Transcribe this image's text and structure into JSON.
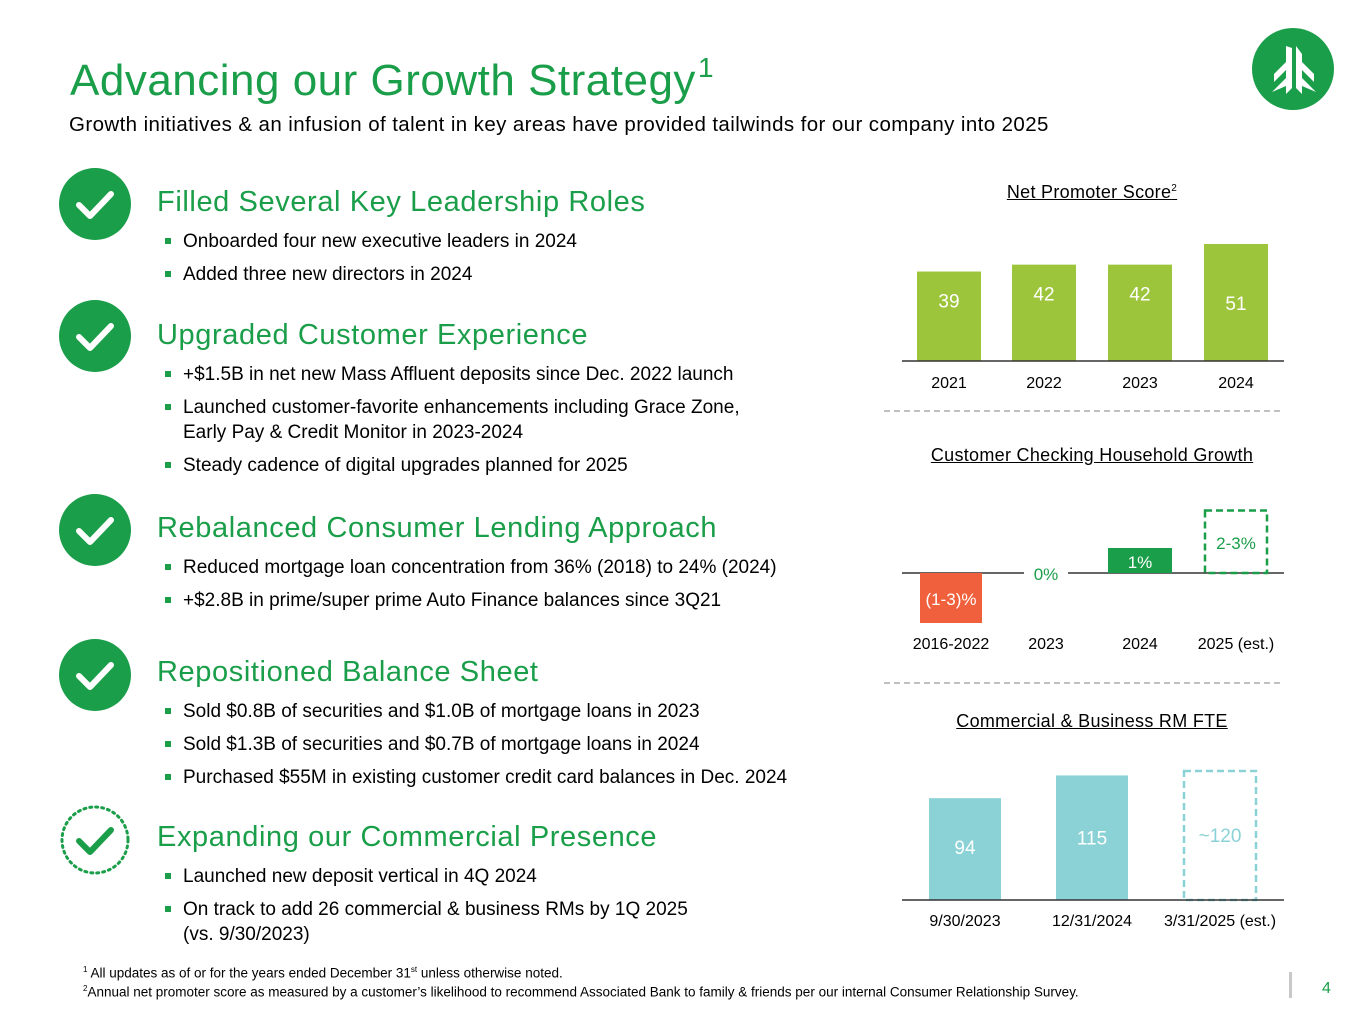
{
  "header": {
    "title": "Advancing our Growth Strategy",
    "title_sup": "1",
    "subtitle": "Growth initiatives & an infusion of talent in key areas have provided tailwinds for our company into 2025"
  },
  "colors": {
    "brand_green": "#1a9e49",
    "lime": "#9dc53b",
    "red": "#f0603c",
    "teal": "#8bd2d6"
  },
  "sections": [
    {
      "title": "Filled Several Key Leadership Roles",
      "status": "complete",
      "bullets": [
        "Onboarded four new executive leaders in 2024",
        "Added three new directors in 2024"
      ]
    },
    {
      "title": "Upgraded Customer Experience",
      "status": "complete",
      "bullets": [
        "+$1.5B in net new Mass Affluent deposits since Dec. 2022 launch",
        "Launched customer-favorite enhancements including Grace Zone,",
        "Early Pay & Credit Monitor in 2023-2024",
        "Steady cadence of digital upgrades planned for 2025"
      ]
    },
    {
      "title": "Rebalanced Consumer Lending Approach",
      "status": "complete",
      "bullets": [
        "Reduced mortgage loan concentration from 36% (2018) to 24% (2024)",
        "+$2.8B in prime/super prime Auto Finance balances since 3Q21"
      ]
    },
    {
      "title": "Repositioned Balance Sheet",
      "status": "complete",
      "bullets": [
        "Sold $0.8B of securities and $1.0B of mortgage loans in 2023",
        "Sold $1.3B of securities and $0.7B of mortgage loans in 2024",
        "Purchased $55M in existing customer credit card balances in Dec. 2024"
      ]
    },
    {
      "title": "Expanding our Commercial Presence",
      "status": "in-progress",
      "bullets": [
        "Launched new deposit vertical in 4Q 2024",
        "On track to add 26 commercial & business RMs by 1Q 2025",
        "(vs. 9/30/2023)"
      ]
    }
  ],
  "chart_data": [
    {
      "type": "bar",
      "title": "Net Promoter Score",
      "title_sup": "2",
      "categories": [
        "2021",
        "2022",
        "2023",
        "2024"
      ],
      "values": [
        39,
        42,
        42,
        51
      ],
      "labels": [
        "39",
        "42",
        "42",
        "51"
      ],
      "color": "#9dc53b",
      "ylim": [
        0,
        51
      ]
    },
    {
      "type": "bar",
      "title": "Customer Checking Household Growth",
      "categories": [
        "2016-2022",
        "2023",
        "2024",
        "2025 (est.)"
      ],
      "values": [
        -2,
        0,
        1,
        2.5
      ],
      "labels": [
        "(1-3)%",
        "0%",
        "1%",
        "2-3%"
      ],
      "styles": [
        "negative",
        "zero",
        "solid",
        "estimate"
      ],
      "colors": [
        "#f0603c",
        "#1a9e49",
        "#1a9e49",
        "#1a9e49"
      ],
      "ylim": [
        -2,
        2.5
      ]
    },
    {
      "type": "bar",
      "title": "Commercial & Business RM FTE",
      "categories": [
        "9/30/2023",
        "12/31/2024",
        "3/31/2025 (est.)"
      ],
      "values": [
        94,
        115,
        120
      ],
      "labels": [
        "94",
        "115",
        "~120"
      ],
      "styles": [
        "solid",
        "solid",
        "estimate"
      ],
      "color": "#8bd2d6",
      "ylim": [
        0,
        120
      ]
    }
  ],
  "footnotes": [
    {
      "num": "1",
      "pre": "All updates as of or for the years ended December 31",
      "sup": "st",
      "post": " unless otherwise noted."
    },
    {
      "num": "2",
      "pre": "Annual net promoter score as measured by a customer’s likelihood to recommend Associated Bank to family & friends per our internal Consumer Relationship Survey.",
      "sup": "",
      "post": ""
    }
  ],
  "page": {
    "number": "4"
  },
  "icons": {
    "logo": "tree-logo-icon",
    "check": "checkmark-circle-icon",
    "check_pending": "dotted-checkmark-circle-icon"
  }
}
